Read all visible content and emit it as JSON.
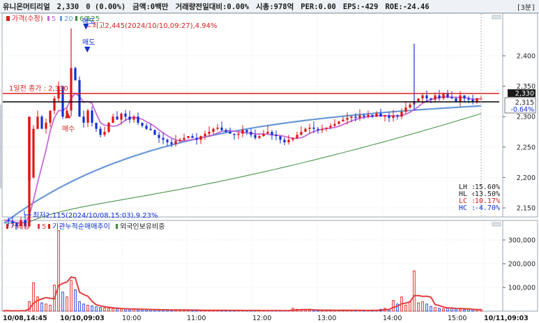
{
  "header": {
    "stock_name": "유니온머티리얼",
    "price": "2,330",
    "change": "0",
    "change_pct": "(0.00%)",
    "amount": "금액:0백만",
    "vol_ratio": "거래량전일대비:0.00%",
    "market_cap": "시총:978억",
    "per": "PER:0.00",
    "eps": "EPS:-429",
    "roe": "ROE:-24.46",
    "period": "[3분]"
  },
  "price_legend": {
    "title": "가격(수정)",
    "ma1": "5",
    "ma2": "20",
    "ma3": "60",
    "ma4": "125"
  },
  "volume_legend": {
    "title": "거래량",
    "ma": "5",
    "inst": "기관누적순매매추이",
    "foreign": "외국인보유비중"
  },
  "annotations": {
    "high": "최고2,445(2024/10/10,09:27),4.94%",
    "low": "최저2,115(2024/10/08,15:03),9.23%",
    "prev_close": "1일전 종가 : 2,330",
    "sell1": "매도",
    "sell2": "매도",
    "buy": "매수",
    "price_tag": "2,330",
    "cross_value": "2,315",
    "cross_pct": "-0.64%"
  },
  "stats": {
    "lh_label": "LH :",
    "lh": "15.60%",
    "hl_label": "HL :",
    "hl": "-13.50%",
    "lc_label": "LC :",
    "lc": "10.17%",
    "hc_label": "HC :",
    "hc": "-4.70%"
  },
  "colors": {
    "up": "#e01515",
    "down": "#1030d8",
    "ma5": "#c868d8",
    "ma20": "#6a98d8",
    "ma60": "#3a8a3a",
    "prev_close_line": "#d82020",
    "cross_line": "#000000",
    "volume_ma": "#e04040"
  },
  "chart_data": {
    "type": "candlestick",
    "interval": "3분",
    "price_axis": {
      "ticks": [
        2150,
        2200,
        2250,
        2300,
        2350,
        2400
      ],
      "range": [
        2100,
        2470
      ]
    },
    "volume_axis": {
      "ticks": [
        100000,
        200000,
        300000
      ],
      "labels": [
        "100,000",
        "200,000",
        "300,000"
      ],
      "range": [
        0,
        350000
      ]
    },
    "time_labels": [
      "10/08,14:45",
      "10/10,09:03",
      "10:00",
      "11:00",
      "12:00",
      "13:00",
      "14:00",
      "15:00",
      "10/11,09:03"
    ],
    "prev_close": 2330,
    "crosshair_price": 2315,
    "last_price": 2330,
    "high": 2445,
    "low": 2115,
    "close_path": [
      2130,
      2128,
      2125,
      2120,
      2130,
      2120,
      2200,
      2280,
      2300,
      2280,
      2290,
      2310,
      2330,
      2350,
      2300,
      2310,
      2380,
      2360,
      2300,
      2290,
      2310,
      2290,
      2280,
      2270,
      2275,
      2290,
      2300,
      2295,
      2305,
      2300,
      2295,
      2300,
      2290,
      2285,
      2280,
      2278,
      2270,
      2265,
      2262,
      2258,
      2255,
      2260,
      2262,
      2265,
      2268,
      2265,
      2262,
      2268,
      2272,
      2275,
      2280,
      2282,
      2278,
      2275,
      2272,
      2270,
      2272,
      2278,
      2275,
      2270,
      2265,
      2268,
      2272,
      2275,
      2270,
      2268,
      2262,
      2258,
      2262,
      2265,
      2270,
      2275,
      2280,
      2282,
      2280,
      2278,
      2280,
      2282,
      2285,
      2288,
      2292,
      2295,
      2298,
      2300,
      2298,
      2302,
      2300,
      2303,
      2300,
      2305,
      2300,
      2302,
      2298,
      2302,
      2300,
      2308,
      2315,
      2320,
      2325,
      2330,
      2335,
      2330,
      2328,
      2335,
      2330,
      2338,
      2332,
      2330,
      2325,
      2335,
      2330,
      2328,
      2325,
      2330,
      2330
    ],
    "volume_path": [
      2000,
      1500,
      1000,
      1200,
      2500,
      3000,
      40000,
      120000,
      60000,
      35000,
      30000,
      25000,
      110000,
      340000,
      80000,
      60000,
      130000,
      90000,
      40000,
      30000,
      25000,
      22000,
      18000,
      15000,
      14000,
      12000,
      11000,
      10000,
      9000,
      9500,
      8000,
      8500,
      7000,
      7500,
      6500,
      6000,
      5500,
      6000,
      5000,
      5200,
      4800,
      5500,
      5000,
      4500,
      4200,
      4000,
      3800,
      4200,
      3500,
      3800,
      3600,
      3400,
      3200,
      3500,
      3000,
      3200,
      3400,
      3000,
      2800,
      3000,
      2600,
      2800,
      2700,
      2500,
      2400,
      2600,
      2500,
      2300,
      2200,
      12000,
      8000,
      6000,
      5000,
      4500,
      4000,
      3800,
      3500,
      5000,
      4000,
      3500,
      3000,
      4500,
      3800,
      3200,
      3000,
      2800,
      3000,
      3200,
      3500,
      4000,
      8000,
      12000,
      9000,
      45000,
      30000,
      60000,
      25000,
      40000,
      170000,
      35000,
      40000,
      30000,
      20000,
      15000,
      12000,
      10000,
      12000,
      15000,
      9000,
      8000,
      7000,
      8000,
      6000,
      5000,
      6000
    ]
  }
}
